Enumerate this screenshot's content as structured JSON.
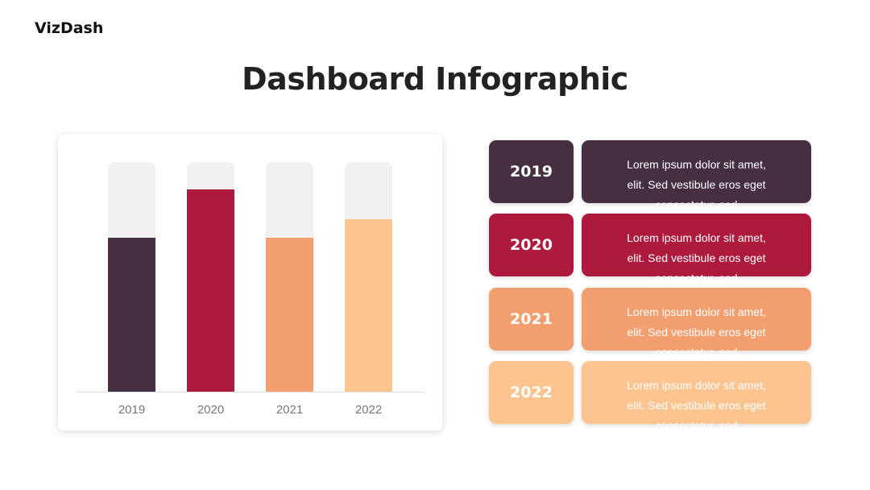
{
  "brand": "VizDash",
  "title": "Dashboard Infographic",
  "chart_data": {
    "type": "bar",
    "categories": [
      "2019",
      "2020",
      "2021",
      "2022"
    ],
    "values": [
      67,
      88,
      67,
      75
    ],
    "colors": [
      "#472f42",
      "#ad1a3d",
      "#f39e6f",
      "#fec48f"
    ],
    "ylim": [
      0,
      100
    ]
  },
  "items": [
    {
      "year": "2019",
      "text": "Lorem ipsum dolor sit amet, elit. Sed vestibule eros eget consectetur, sed"
    },
    {
      "year": "2020",
      "text": "Lorem ipsum dolor sit amet, elit. Sed vestibule eros eget consectetur, sed"
    },
    {
      "year": "2021",
      "text": "Lorem ipsum dolor sit amet, elit. Sed vestibule eros eget consectetur, sed"
    },
    {
      "year": "2022",
      "text": "Lorem ipsum dolor sit amet, elit. Sed vestibule eros eget consectetur, sed"
    }
  ]
}
